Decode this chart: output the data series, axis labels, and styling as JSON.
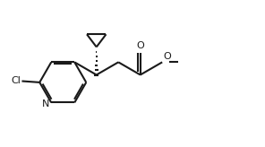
{
  "bg_color": "#ffffff",
  "line_color": "#1a1a1a",
  "lw": 1.5,
  "fig_w": 2.96,
  "fig_h": 1.64,
  "dpi": 100,
  "font_size": 8.0,
  "xlim": [
    0,
    9.6
  ],
  "ylim": [
    0,
    5.8
  ]
}
